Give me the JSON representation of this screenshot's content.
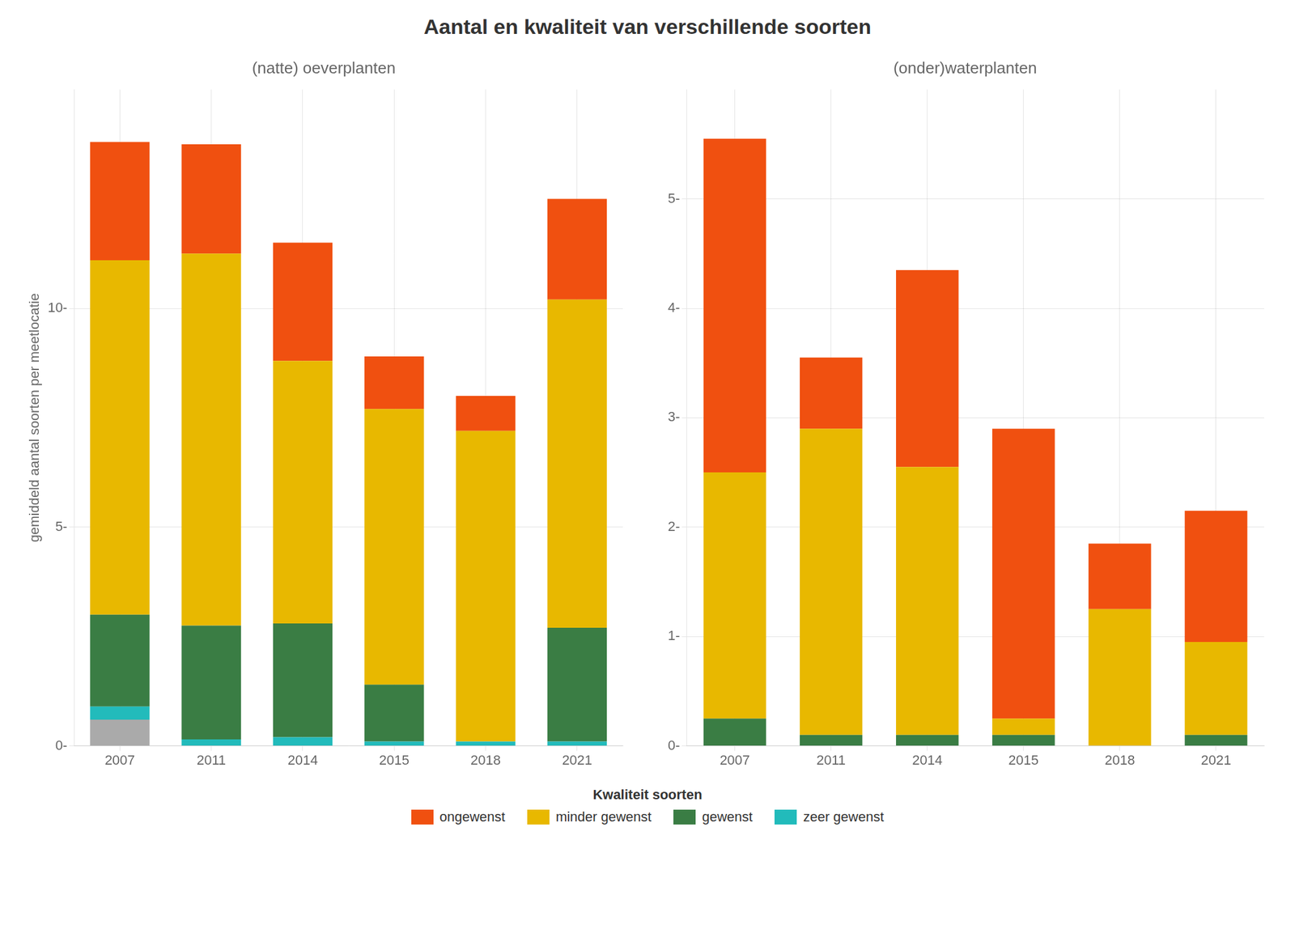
{
  "chart_data": [
    {
      "type": "bar",
      "stacked": true,
      "title": "Aantal en kwaliteit van verschillende soorten",
      "subtitle": "(natte) oeverplanten",
      "ylabel": "gemiddeld aantal soorten per meetlocatie",
      "categories": [
        "2007",
        "2011",
        "2014",
        "2015",
        "2018",
        "2021"
      ],
      "series": [
        {
          "color": "#AAAAAA",
          "values": [
            0.6,
            0.0,
            0.0,
            0.0,
            0.0,
            0.0
          ]
        },
        {
          "name": "zeer gewenst",
          "color": "#22BBBB",
          "values": [
            0.3,
            0.15,
            0.2,
            0.1,
            0.1,
            0.1
          ]
        },
        {
          "name": "gewenst",
          "color": "#3A7D44",
          "values": [
            2.1,
            2.6,
            2.6,
            1.3,
            0.0,
            2.6
          ]
        },
        {
          "name": "minder gewenst",
          "color": "#E8B800",
          "values": [
            8.1,
            8.5,
            6.0,
            6.3,
            7.1,
            7.5
          ]
        },
        {
          "name": "ongewenst",
          "color": "#F05010",
          "values": [
            2.7,
            2.5,
            2.7,
            1.2,
            0.8,
            2.3
          ]
        }
      ],
      "ylim": [
        0,
        15
      ],
      "yticks": [
        {
          "value": 0,
          "label": "0-"
        },
        {
          "value": 5,
          "label": "5-"
        },
        {
          "value": 10,
          "label": "10-"
        }
      ],
      "grid": true,
      "legend": "bottom",
      "legend_title": "Kwaliteit soorten"
    },
    {
      "type": "bar",
      "stacked": true,
      "subtitle": "(onder)waterplanten",
      "categories": [
        "2007",
        "2011",
        "2014",
        "2015",
        "2018",
        "2021"
      ],
      "series": [
        {
          "name": "gewenst",
          "color": "#3A7D44",
          "values": [
            0.25,
            0.1,
            0.1,
            0.1,
            0.0,
            0.1
          ]
        },
        {
          "name": "minder gewenst",
          "color": "#E8B800",
          "values": [
            2.25,
            2.8,
            2.45,
            0.15,
            1.25,
            0.85
          ]
        },
        {
          "name": "ongewenst",
          "color": "#F05010",
          "values": [
            3.05,
            0.65,
            1.8,
            2.65,
            0.6,
            1.2
          ]
        }
      ],
      "ylim": [
        0,
        6
      ],
      "yticks": [
        {
          "value": 0,
          "label": "0-"
        },
        {
          "value": 1,
          "label": "1-"
        },
        {
          "value": 2,
          "label": "2-"
        },
        {
          "value": 3,
          "label": "3-"
        },
        {
          "value": 4,
          "label": "4-"
        },
        {
          "value": 5,
          "label": "5-"
        }
      ],
      "grid": true
    }
  ]
}
